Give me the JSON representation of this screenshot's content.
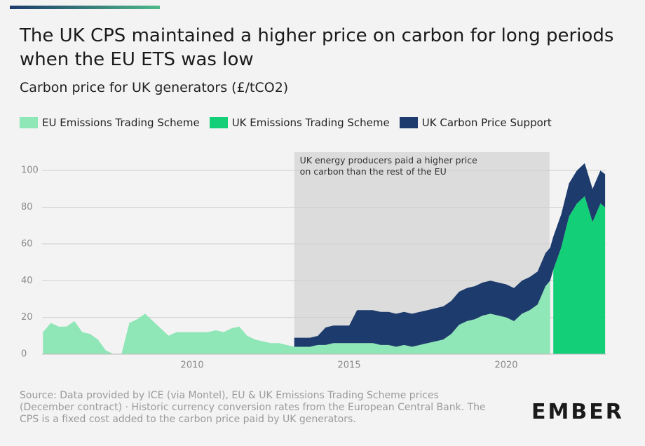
{
  "chart_data": {
    "type": "stacked_area",
    "title": "The UK CPS maintained a higher price on carbon for long periods when the EU ETS was low",
    "subtitle": "Carbon price for UK generators (£/tCO2)",
    "x": [
      2005.25,
      2005.5,
      2005.75,
      2006,
      2006.25,
      2006.5,
      2006.75,
      2007,
      2007.25,
      2007.5,
      2007.75,
      2008,
      2008.25,
      2008.5,
      2008.75,
      2009,
      2009.25,
      2009.5,
      2009.75,
      2010,
      2010.25,
      2010.5,
      2010.75,
      2011,
      2011.25,
      2011.5,
      2011.75,
      2012,
      2012.25,
      2012.5,
      2012.75,
      2013,
      2013.25,
      2013.5,
      2013.75,
      2014,
      2014.25,
      2014.5,
      2014.75,
      2015,
      2015.25,
      2015.5,
      2015.75,
      2016,
      2016.25,
      2016.5,
      2016.75,
      2017,
      2017.25,
      2017.5,
      2017.75,
      2018,
      2018.25,
      2018.5,
      2018.75,
      2019,
      2019.25,
      2019.5,
      2019.75,
      2020,
      2020.25,
      2020.5,
      2020.75,
      2021,
      2021.25,
      2021.4,
      2021.5,
      2021.75,
      2022,
      2022.25,
      2022.5,
      2022.75,
      2023,
      2023.15
    ],
    "series": [
      {
        "name": "EU Emissions Trading Scheme",
        "color": "#8fe6b6",
        "values": [
          12,
          17,
          15,
          15,
          18,
          12,
          11,
          8,
          2,
          0,
          0,
          17,
          19,
          22,
          18,
          14,
          10,
          12,
          12,
          12,
          12,
          12,
          13,
          12,
          14,
          15,
          10,
          8,
          7,
          6,
          6,
          5,
          4,
          4,
          4,
          5,
          5,
          6,
          6,
          6,
          6,
          6,
          6,
          5,
          5,
          4,
          5,
          4,
          5,
          6,
          7,
          8,
          11,
          16,
          18,
          19,
          21,
          22,
          21,
          20,
          18,
          22,
          24,
          27,
          37,
          40,
          null,
          null,
          null,
          null,
          null,
          null,
          null,
          null
        ]
      },
      {
        "name": "UK Emissions Trading Scheme",
        "color": "#12cf78",
        "values": [
          null,
          null,
          null,
          null,
          null,
          null,
          null,
          null,
          null,
          null,
          null,
          null,
          null,
          null,
          null,
          null,
          null,
          null,
          null,
          null,
          null,
          null,
          null,
          null,
          null,
          null,
          null,
          null,
          null,
          null,
          null,
          null,
          null,
          null,
          null,
          null,
          null,
          null,
          null,
          null,
          null,
          null,
          null,
          null,
          null,
          null,
          null,
          null,
          null,
          null,
          null,
          null,
          null,
          null,
          null,
          null,
          null,
          null,
          null,
          null,
          null,
          null,
          null,
          null,
          null,
          null,
          46,
          58,
          75,
          82,
          86,
          72,
          82,
          80
        ]
      },
      {
        "name": "UK Carbon Price Support",
        "color": "#1d3b6c",
        "values": [
          null,
          null,
          null,
          null,
          null,
          null,
          null,
          null,
          null,
          null,
          null,
          null,
          null,
          null,
          null,
          null,
          null,
          null,
          null,
          null,
          null,
          null,
          null,
          null,
          null,
          null,
          null,
          null,
          null,
          null,
          null,
          null,
          4.94,
          4.94,
          4.94,
          4.94,
          9.55,
          9.55,
          9.55,
          9.55,
          18,
          18,
          18,
          18,
          18,
          18,
          18,
          18,
          18,
          18,
          18,
          18,
          18,
          18,
          18,
          18,
          18,
          18,
          18,
          18,
          18,
          18,
          18,
          18,
          18,
          18,
          18,
          18,
          18,
          18,
          18,
          18,
          18,
          18
        ]
      }
    ],
    "xlim": [
      2005.22,
      2023.17
    ],
    "xticks": [
      2010,
      2015,
      2020
    ],
    "ylim": [
      0,
      110
    ],
    "yticks": [
      0,
      20,
      40,
      60,
      80,
      100
    ],
    "grid": true,
    "annotation": {
      "text": "UK energy producers paid a higher price on carbon than the rest of the EU",
      "x": [
        2013.25,
        2021.38
      ]
    },
    "source": "Source: Data provided by ICE (via Montel), EU & UK Emissions Trading Scheme prices (December contract) · Historic currency conversion rates from the European Central Bank. The CPS is a fixed cost added to the carbon price paid by UK generators.",
    "logo": "EMBER"
  }
}
